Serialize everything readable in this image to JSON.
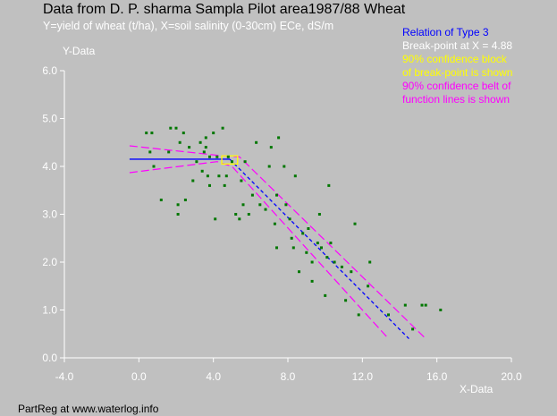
{
  "title": "Data from D. P. sharma Sampla Pilot area1987/88 Wheat",
  "subtitle": "Y=yield of wheat (t/ha), X=soil salinity (0-30cm) ECe, dS/m",
  "footer": "PartReg at www.waterlog.info",
  "legend": [
    {
      "text": "Relation of Type 3",
      "color": "#0000ff"
    },
    {
      "text": "Break-point at X =  4.88",
      "color": "#ffffff"
    },
    {
      "text": "90% confidence block",
      "color": "#ffff00"
    },
    {
      "text": "of break-point is shown",
      "color": "#ffff00"
    },
    {
      "text": "90% confidence belt of",
      "color": "#ff00ff"
    },
    {
      "text": "function lines is shown",
      "color": "#ff00ff"
    }
  ],
  "chart_data": {
    "type": "scatter",
    "title": "Data from D. P. sharma Sampla Pilot area1987/88 Wheat",
    "subtitle": "Y=yield of wheat (t/ha), X=soil salinity (0-30cm) ECe, dS/m",
    "xlabel": "X-Data",
    "ylabel": "Y-Data",
    "xlim": [
      -4,
      20
    ],
    "ylim": [
      0,
      6
    ],
    "xticks": [
      "-4.0",
      "0.0",
      "4.0",
      "8.0",
      "12.0",
      "16.0",
      "20.0"
    ],
    "yticks": [
      "0.0",
      "1.0",
      "2.0",
      "3.0",
      "4.0",
      "5.0",
      "6.0"
    ],
    "grid": false,
    "legend_position": "top-right",
    "colors": {
      "points": "#007700",
      "fit": "#0000ff",
      "break_block": "#ffff00",
      "conf_belt": "#ff00ff",
      "axes": "#ffffff"
    },
    "points": [
      [
        0.4,
        4.7
      ],
      [
        0.7,
        4.7
      ],
      [
        0.6,
        4.3
      ],
      [
        0.8,
        4.0
      ],
      [
        1.2,
        3.3
      ],
      [
        1.6,
        4.3
      ],
      [
        1.7,
        4.8
      ],
      [
        2.0,
        4.8
      ],
      [
        2.2,
        4.5
      ],
      [
        2.1,
        3.0
      ],
      [
        2.1,
        3.2
      ],
      [
        2.4,
        4.7
      ],
      [
        2.5,
        3.3
      ],
      [
        2.7,
        4.4
      ],
      [
        2.9,
        3.7
      ],
      [
        3.1,
        4.1
      ],
      [
        3.3,
        4.5
      ],
      [
        3.4,
        3.9
      ],
      [
        3.5,
        4.3
      ],
      [
        3.6,
        4.6
      ],
      [
        3.6,
        4.4
      ],
      [
        3.7,
        3.8
      ],
      [
        3.8,
        4.2
      ],
      [
        3.8,
        3.6
      ],
      [
        4.0,
        4.7
      ],
      [
        4.1,
        2.9
      ],
      [
        4.2,
        4.2
      ],
      [
        4.3,
        3.8
      ],
      [
        4.5,
        4.8
      ],
      [
        4.6,
        3.6
      ],
      [
        4.7,
        3.8
      ],
      [
        4.8,
        4.2
      ],
      [
        5.0,
        4.1
      ],
      [
        5.2,
        3.0
      ],
      [
        5.4,
        2.9
      ],
      [
        5.5,
        3.7
      ],
      [
        5.6,
        3.2
      ],
      [
        5.7,
        4.1
      ],
      [
        5.9,
        3.0
      ],
      [
        6.1,
        3.4
      ],
      [
        6.3,
        4.5
      ],
      [
        6.5,
        3.2
      ],
      [
        6.8,
        3.1
      ],
      [
        7.0,
        4.0
      ],
      [
        7.1,
        4.4
      ],
      [
        7.3,
        2.8
      ],
      [
        7.4,
        2.3
      ],
      [
        7.4,
        3.4
      ],
      [
        7.5,
        4.6
      ],
      [
        7.8,
        4.0
      ],
      [
        7.9,
        3.2
      ],
      [
        8.1,
        2.9
      ],
      [
        8.2,
        2.5
      ],
      [
        8.3,
        2.3
      ],
      [
        8.4,
        3.8
      ],
      [
        8.6,
        1.8
      ],
      [
        8.8,
        2.6
      ],
      [
        9.0,
        2.2
      ],
      [
        9.1,
        2.7
      ],
      [
        9.3,
        1.6
      ],
      [
        9.3,
        2.0
      ],
      [
        9.6,
        2.4
      ],
      [
        9.7,
        3.0
      ],
      [
        9.8,
        2.3
      ],
      [
        10.0,
        1.3
      ],
      [
        10.1,
        2.1
      ],
      [
        10.2,
        3.6
      ],
      [
        10.3,
        2.4
      ],
      [
        10.5,
        2.0
      ],
      [
        10.9,
        1.9
      ],
      [
        11.1,
        1.2
      ],
      [
        11.4,
        1.8
      ],
      [
        11.6,
        2.8
      ],
      [
        11.8,
        0.9
      ],
      [
        12.3,
        1.5
      ],
      [
        12.4,
        2.0
      ],
      [
        13.4,
        0.9
      ],
      [
        14.3,
        1.1
      ],
      [
        14.7,
        0.6
      ],
      [
        15.2,
        1.1
      ],
      [
        15.4,
        1.1
      ],
      [
        16.2,
        1.0
      ]
    ],
    "breakpoint": 4.88,
    "fit_line": {
      "x": [
        -0.5,
        4.88,
        14.5
      ],
      "y": [
        4.15,
        4.15,
        0.4
      ]
    },
    "break_block": {
      "x": [
        4.45,
        5.3
      ],
      "y": [
        4.05,
        4.22
      ]
    },
    "conf_belt_upper": {
      "x": [
        -0.5,
        4.5,
        5.4,
        15.4
      ],
      "y": [
        4.43,
        4.22,
        4.2,
        0.4
      ]
    },
    "conf_belt_lower": {
      "x": [
        -0.5,
        4.2,
        5.0,
        13.4
      ],
      "y": [
        3.87,
        4.1,
        4.0,
        0.4
      ]
    }
  }
}
